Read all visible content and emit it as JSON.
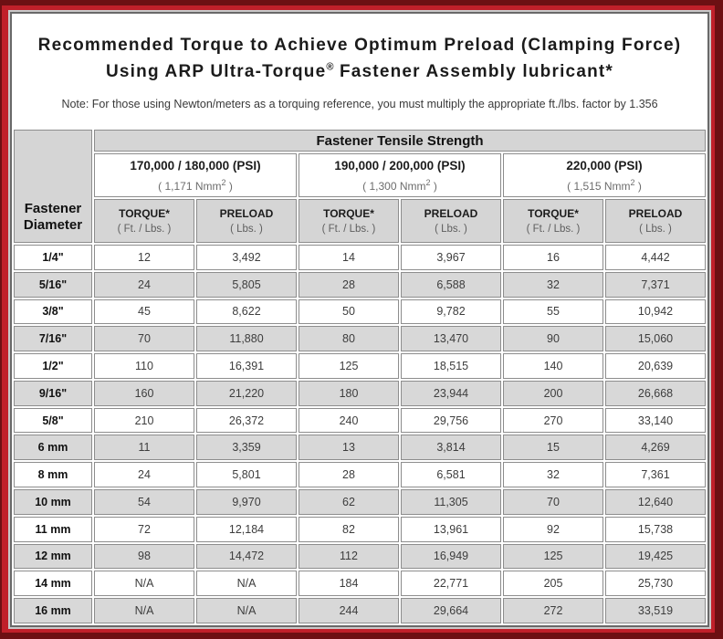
{
  "header": {
    "title_line1": "Recommended Torque to Achieve Optimum Preload (Clamping Force)",
    "title_line2_pre": "Using ARP Ultra-Torque",
    "title_line2_sup": "®",
    "title_line2_post": " Fastener Assembly lubricant*",
    "note": "Note: For those using Newton/meters as a torquing reference, you must multiply the appropriate ft./lbs. factor by 1.356"
  },
  "table": {
    "tensile_header": "Fastener Tensile Strength",
    "diameter_header_line1": "Fastener",
    "diameter_header_line2": "Diameter",
    "groups": [
      {
        "psi": "170,000 / 180,000 (PSI)",
        "nmm_pre": "( 1,171 Nmm",
        "nmm_sup": "2",
        "nmm_post": " )"
      },
      {
        "psi": "190,000 / 200,000 (PSI)",
        "nmm_pre": "( 1,300 Nmm",
        "nmm_sup": "2",
        "nmm_post": " )"
      },
      {
        "psi": "220,000 (PSI)",
        "nmm_pre": "( 1,515 Nmm",
        "nmm_sup": "2",
        "nmm_post": " )"
      }
    ],
    "sub_headers": {
      "torque": "TORQUE*",
      "torque_unit": "( Ft. / Lbs. )",
      "preload": "PRELOAD",
      "preload_unit": "( Lbs. )"
    },
    "rows": [
      {
        "diameter": "1/4\"",
        "values": [
          "12",
          "3,492",
          "14",
          "3,967",
          "16",
          "4,442"
        ]
      },
      {
        "diameter": "5/16\"",
        "values": [
          "24",
          "5,805",
          "28",
          "6,588",
          "32",
          "7,371"
        ]
      },
      {
        "diameter": "3/8\"",
        "values": [
          "45",
          "8,622",
          "50",
          "9,782",
          "55",
          "10,942"
        ]
      },
      {
        "diameter": "7/16\"",
        "values": [
          "70",
          "11,880",
          "80",
          "13,470",
          "90",
          "15,060"
        ]
      },
      {
        "diameter": "1/2\"",
        "values": [
          "110",
          "16,391",
          "125",
          "18,515",
          "140",
          "20,639"
        ]
      },
      {
        "diameter": "9/16\"",
        "values": [
          "160",
          "21,220",
          "180",
          "23,944",
          "200",
          "26,668"
        ]
      },
      {
        "diameter": "5/8\"",
        "values": [
          "210",
          "26,372",
          "240",
          "29,756",
          "270",
          "33,140"
        ]
      },
      {
        "diameter": "6 mm",
        "values": [
          "11",
          "3,359",
          "13",
          "3,814",
          "15",
          "4,269"
        ]
      },
      {
        "diameter": "8 mm",
        "values": [
          "24",
          "5,801",
          "28",
          "6,581",
          "32",
          "7,361"
        ]
      },
      {
        "diameter": "10 mm",
        "values": [
          "54",
          "9,970",
          "62",
          "11,305",
          "70",
          "12,640"
        ]
      },
      {
        "diameter": "11 mm",
        "values": [
          "72",
          "12,184",
          "82",
          "13,961",
          "92",
          "15,738"
        ]
      },
      {
        "diameter": "12 mm",
        "values": [
          "98",
          "14,472",
          "112",
          "16,949",
          "125",
          "19,425"
        ]
      },
      {
        "diameter": "14 mm",
        "values": [
          "N/A",
          "N/A",
          "184",
          "22,771",
          "205",
          "25,730"
        ]
      },
      {
        "diameter": "16 mm",
        "values": [
          "N/A",
          "N/A",
          "244",
          "29,664",
          "272",
          "33,519"
        ]
      }
    ]
  },
  "colors": {
    "frame_red": "#c0202a",
    "frame_maroon": "#6d1013",
    "header_gray": "#d5d5d5",
    "row_gray": "#d8d8d8"
  }
}
